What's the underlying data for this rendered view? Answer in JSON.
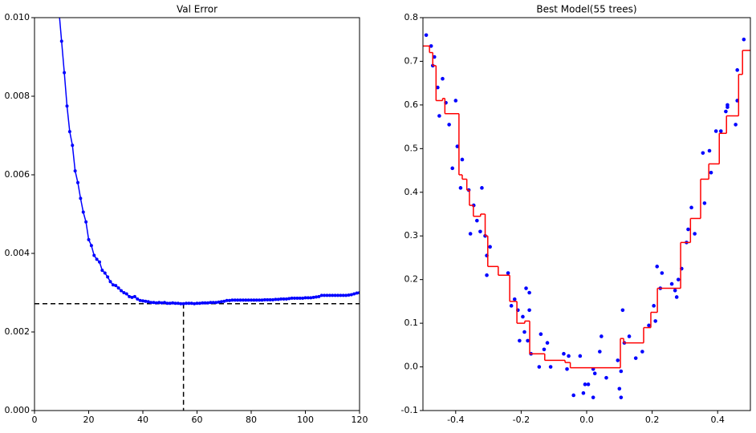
{
  "chart_data": [
    {
      "type": "line",
      "title": "Val Error",
      "color": "#0000ff",
      "x": [
        9,
        10,
        11,
        12,
        13,
        14,
        15,
        16,
        17,
        18,
        19,
        20,
        21,
        22,
        23,
        24,
        25,
        26,
        27,
        28,
        29,
        30,
        31,
        32,
        33,
        34,
        35,
        36,
        37,
        38,
        39,
        40,
        41,
        42,
        43,
        44,
        45,
        46,
        47,
        48,
        49,
        50,
        51,
        52,
        53,
        54,
        55,
        56,
        57,
        58,
        59,
        60,
        61,
        62,
        63,
        64,
        65,
        66,
        67,
        68,
        69,
        70,
        71,
        72,
        73,
        74,
        75,
        76,
        77,
        78,
        79,
        80,
        81,
        82,
        83,
        84,
        85,
        86,
        87,
        88,
        89,
        90,
        91,
        92,
        93,
        94,
        95,
        96,
        97,
        98,
        99,
        100,
        101,
        102,
        103,
        104,
        105,
        106,
        107,
        108,
        109,
        110,
        111,
        112,
        113,
        114,
        115,
        116,
        117,
        118,
        119,
        120
      ],
      "values": [
        0.0102,
        0.0094,
        0.0086,
        0.00775,
        0.0071,
        0.00675,
        0.0061,
        0.0058,
        0.0054,
        0.00505,
        0.0048,
        0.00435,
        0.0042,
        0.00395,
        0.00385,
        0.00378,
        0.00357,
        0.0035,
        0.0034,
        0.00328,
        0.0032,
        0.00318,
        0.00312,
        0.00305,
        0.003,
        0.00297,
        0.0029,
        0.00288,
        0.0029,
        0.00284,
        0.0028,
        0.00279,
        0.00278,
        0.00277,
        0.00275,
        0.00275,
        0.00274,
        0.00275,
        0.00274,
        0.00275,
        0.00273,
        0.00273,
        0.00274,
        0.00273,
        0.00273,
        0.00272,
        0.00272,
        0.00273,
        0.00273,
        0.00273,
        0.00272,
        0.00273,
        0.00273,
        0.00274,
        0.00274,
        0.00274,
        0.00275,
        0.00275,
        0.00275,
        0.00276,
        0.00277,
        0.00278,
        0.0028,
        0.0028,
        0.00281,
        0.00281,
        0.00281,
        0.00281,
        0.00281,
        0.00281,
        0.00281,
        0.00281,
        0.00281,
        0.00281,
        0.00281,
        0.00281,
        0.00282,
        0.00282,
        0.00282,
        0.00282,
        0.00283,
        0.00283,
        0.00284,
        0.00284,
        0.00284,
        0.00285,
        0.00286,
        0.00286,
        0.00286,
        0.00286,
        0.00286,
        0.00287,
        0.00287,
        0.00287,
        0.00288,
        0.00289,
        0.0029,
        0.00293,
        0.00293,
        0.00293,
        0.00293,
        0.00293,
        0.00293,
        0.00293,
        0.00293,
        0.00293,
        0.00293,
        0.00294,
        0.00295,
        0.00297,
        0.00299,
        0.003
      ],
      "reference": {
        "x": 55,
        "y": 0.00272,
        "color": "#000000"
      },
      "xlim": [
        0,
        120
      ],
      "xticks": [
        0,
        20,
        40,
        60,
        80,
        100,
        120
      ],
      "ylim": [
        0,
        0.01
      ],
      "yticks": [
        {
          "value": 0,
          "label": "0.000"
        },
        0.002,
        0.004,
        0.006,
        0.008,
        {
          "value": 0.01,
          "label": "0.010"
        }
      ]
    },
    {
      "type": "scatter",
      "title": "Best Model(55 trees)",
      "points": {
        "color": "#0000ff",
        "x": [
          -0.49,
          -0.475,
          -0.47,
          -0.465,
          -0.455,
          -0.45,
          -0.44,
          -0.43,
          -0.42,
          -0.41,
          -0.4,
          -0.395,
          -0.385,
          -0.38,
          -0.36,
          -0.355,
          -0.345,
          -0.335,
          -0.325,
          -0.32,
          -0.31,
          -0.305,
          -0.305,
          -0.295,
          -0.24,
          -0.23,
          -0.22,
          -0.21,
          -0.205,
          -0.195,
          -0.19,
          -0.185,
          -0.18,
          -0.175,
          -0.175,
          -0.17,
          -0.145,
          -0.14,
          -0.13,
          -0.12,
          -0.11,
          -0.07,
          -0.06,
          -0.055,
          -0.04,
          -0.02,
          -0.01,
          -0.005,
          0.005,
          0.02,
          0.02,
          0.025,
          0.04,
          0.045,
          0.06,
          0.095,
          0.1,
          0.105,
          0.105,
          0.11,
          0.115,
          0.13,
          0.15,
          0.17,
          0.19,
          0.205,
          0.21,
          0.215,
          0.225,
          0.23,
          0.26,
          0.27,
          0.275,
          0.28,
          0.29,
          0.305,
          0.31,
          0.32,
          0.33,
          0.355,
          0.36,
          0.375,
          0.38,
          0.395,
          0.41,
          0.425,
          0.43,
          0.43,
          0.455,
          0.46,
          0.46,
          0.48
        ],
        "y": [
          0.76,
          0.735,
          0.69,
          0.71,
          0.64,
          0.575,
          0.66,
          0.605,
          0.555,
          0.455,
          0.61,
          0.505,
          0.41,
          0.475,
          0.405,
          0.305,
          0.37,
          0.335,
          0.31,
          0.41,
          0.3,
          0.255,
          0.21,
          0.275,
          0.215,
          0.14,
          0.155,
          0.13,
          0.06,
          0.115,
          0.08,
          0.18,
          0.06,
          0.17,
          0.13,
          0.03,
          0.0,
          0.075,
          0.04,
          0.055,
          0.0,
          0.03,
          -0.005,
          0.025,
          -0.065,
          0.025,
          -0.06,
          -0.04,
          -0.04,
          -0.07,
          -0.005,
          -0.015,
          0.035,
          0.07,
          -0.025,
          0.015,
          -0.05,
          -0.07,
          -0.01,
          0.13,
          0.055,
          0.07,
          0.02,
          0.035,
          0.095,
          0.14,
          0.105,
          0.23,
          0.18,
          0.215,
          0.19,
          0.175,
          0.16,
          0.2,
          0.225,
          0.285,
          0.315,
          0.365,
          0.305,
          0.49,
          0.375,
          0.495,
          0.445,
          0.54,
          0.54,
          0.585,
          0.6,
          0.595,
          0.555,
          0.68,
          0.61,
          0.75
        ]
      },
      "step_line": {
        "color": "#ff0000",
        "x": [
          -0.5,
          -0.48,
          -0.47,
          -0.46,
          -0.44,
          -0.433,
          -0.39,
          -0.38,
          -0.366,
          -0.358,
          -0.346,
          -0.324,
          -0.31,
          -0.302,
          -0.27,
          -0.235,
          -0.213,
          -0.189,
          -0.174,
          -0.128,
          -0.066,
          -0.05,
          0.103,
          0.113,
          0.174,
          0.196,
          0.216,
          0.287,
          0.317,
          0.348,
          0.373,
          0.405,
          0.427,
          0.464,
          0.476,
          0.5
        ],
        "y": [
          0.735,
          0.72,
          0.69,
          0.61,
          0.615,
          0.58,
          0.44,
          0.43,
          0.405,
          0.37,
          0.345,
          0.35,
          0.3,
          0.23,
          0.21,
          0.15,
          0.1,
          0.105,
          0.03,
          0.015,
          0.01,
          -0.002,
          0.065,
          0.055,
          0.09,
          0.125,
          0.18,
          0.285,
          0.34,
          0.43,
          0.465,
          0.535,
          0.575,
          0.67,
          0.725,
          0.725
        ]
      },
      "xlim": [
        -0.5,
        0.5
      ],
      "xticks": [
        -0.4,
        -0.2,
        {
          "value": 0,
          "label": "0.0"
        },
        0.2,
        0.4
      ],
      "ylim": [
        -0.1,
        0.8
      ],
      "yticks": [
        -0.1,
        {
          "value": 0,
          "label": "0.0"
        },
        0.1,
        0.2,
        0.3,
        0.4,
        0.5,
        0.6,
        0.7,
        0.8
      ]
    }
  ]
}
